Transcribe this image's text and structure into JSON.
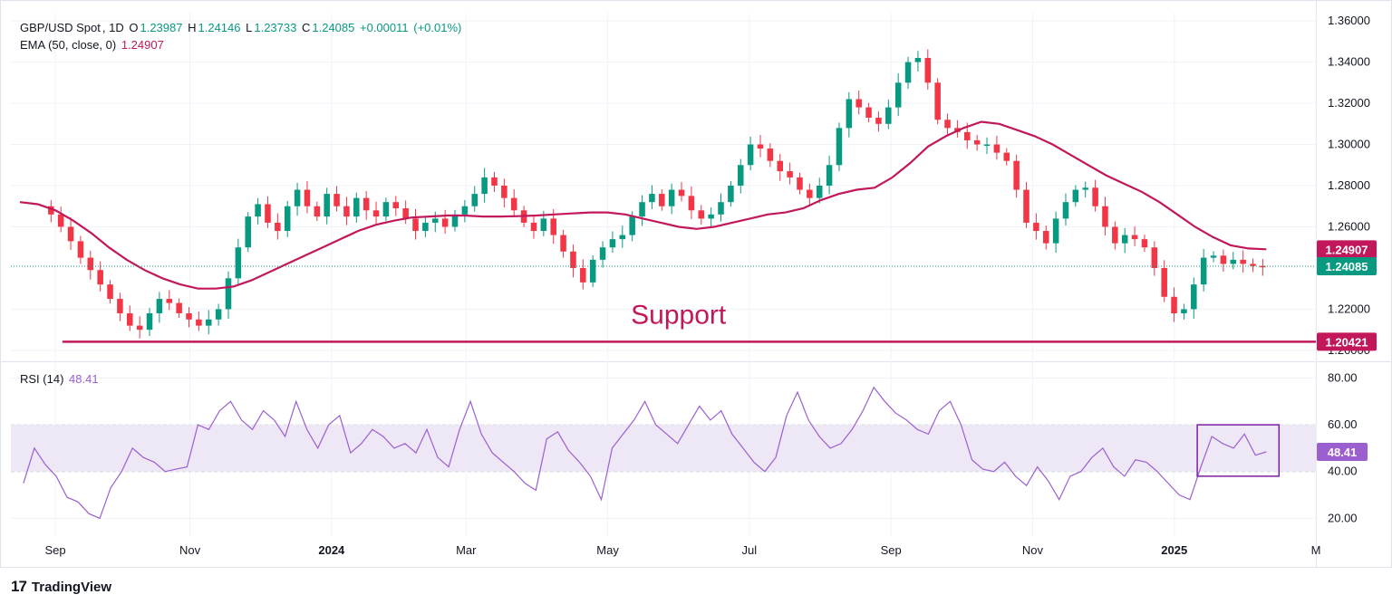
{
  "chart_data": [
    {
      "type": "candlestick",
      "symbol": "GBP/USD Spot",
      "interval": "1D",
      "ohlc": {
        "o_label": "O",
        "open": "1.23987",
        "h_label": "H",
        "high": "1.24146",
        "l_label": "L",
        "low": "1.23733",
        "c_label": "C",
        "close": "1.24085",
        "change": "+0.00011",
        "change_pct": "(+0.01%)"
      },
      "ema": {
        "label": "EMA (50, close, 0)",
        "value": "1.24907"
      },
      "y_ticks": [
        "1.36000",
        "1.34000",
        "1.32000",
        "1.30000",
        "1.28000",
        "1.26000",
        "1.22000",
        "1.20000"
      ],
      "y_tick_values": [
        1.36,
        1.34,
        1.32,
        1.3,
        1.28,
        1.26,
        1.22,
        1.2
      ],
      "ylim": [
        1.196,
        1.364
      ],
      "x_ticks": [
        "Sep",
        "Nov",
        "2024",
        "Mar",
        "May",
        "Jul",
        "Sep",
        "Nov",
        "2025",
        "M"
      ],
      "x_tick_months": [
        0.5,
        2.4,
        4.4,
        6.3,
        8.3,
        10.3,
        12.3,
        14.3,
        16.3,
        18.3
      ],
      "xlim_months": [
        0.0,
        18.3
      ],
      "close_series": [
        1.27,
        1.266,
        1.26,
        1.253,
        1.245,
        1.239,
        1.232,
        1.225,
        1.218,
        1.212,
        1.21,
        1.218,
        1.225,
        1.223,
        1.218,
        1.215,
        1.212,
        1.215,
        1.22,
        1.235,
        1.25,
        1.265,
        1.271,
        1.262,
        1.258,
        1.27,
        1.278,
        1.27,
        1.265,
        1.276,
        1.27,
        1.265,
        1.274,
        1.268,
        1.265,
        1.272,
        1.269,
        1.264,
        1.258,
        1.262,
        1.264,
        1.26,
        1.266,
        1.27,
        1.276,
        1.284,
        1.28,
        1.274,
        1.268,
        1.262,
        1.258,
        1.264,
        1.256,
        1.248,
        1.24,
        1.233,
        1.244,
        1.25,
        1.254,
        1.256,
        1.265,
        1.272,
        1.276,
        1.27,
        1.278,
        1.275,
        1.268,
        1.264,
        1.266,
        1.272,
        1.28,
        1.29,
        1.3,
        1.298,
        1.292,
        1.287,
        1.284,
        1.278,
        1.274,
        1.28,
        1.29,
        1.308,
        1.322,
        1.318,
        1.313,
        1.31,
        1.318,
        1.33,
        1.34,
        1.342,
        1.33,
        1.312,
        1.308,
        1.306,
        1.302,
        1.3,
        1.3,
        1.296,
        1.292,
        1.278,
        1.262,
        1.258,
        1.252,
        1.264,
        1.272,
        1.278,
        1.279,
        1.27,
        1.26,
        1.252,
        1.256,
        1.254,
        1.25,
        1.24,
        1.226,
        1.218,
        1.22,
        1.232,
        1.245,
        1.246,
        1.242,
        1.244,
        1.242,
        1.241,
        1.2408
      ],
      "ema_series": [
        1.272,
        1.271,
        1.268,
        1.263,
        1.257,
        1.25,
        1.244,
        1.239,
        1.235,
        1.232,
        1.23,
        1.23,
        1.231,
        1.234,
        1.238,
        1.242,
        1.246,
        1.25,
        1.254,
        1.258,
        1.261,
        1.263,
        1.2645,
        1.265,
        1.2655,
        1.2655,
        1.265,
        1.265,
        1.2652,
        1.2655,
        1.266,
        1.2665,
        1.267,
        1.267,
        1.266,
        1.264,
        1.262,
        1.26,
        1.259,
        1.26,
        1.262,
        1.264,
        1.266,
        1.267,
        1.269,
        1.273,
        1.276,
        1.278,
        1.279,
        1.284,
        1.291,
        1.299,
        1.304,
        1.308,
        1.311,
        1.31,
        1.307,
        1.304,
        1.3,
        1.295,
        1.29,
        1.285,
        1.281,
        1.277,
        1.272,
        1.266,
        1.26,
        1.255,
        1.251,
        1.2495,
        1.2491
      ],
      "support": {
        "label": "Support",
        "value": "1.20421",
        "level": 1.20421
      },
      "current_price": {
        "value": "1.24085",
        "level": 1.24085
      },
      "ema_badge": {
        "value": "1.24907",
        "level": 1.24907
      },
      "colors": {
        "up": "#089981",
        "down": "#f23645",
        "ema": "#c2185b",
        "support": "#c2185b",
        "grid": "#f0f3fa",
        "axis_text": "#131722"
      }
    },
    {
      "type": "line",
      "label": "RSI (14)",
      "value": "48.41",
      "y_ticks": [
        "80.00",
        "60.00",
        "40.00",
        "20.00"
      ],
      "y_tick_values": [
        80,
        60,
        40,
        20
      ],
      "ylim": [
        12,
        86
      ],
      "band": [
        40,
        60
      ],
      "rsi_series": [
        35,
        50,
        43,
        38,
        29,
        27,
        22,
        20,
        33,
        40,
        50,
        46,
        44,
        40,
        41,
        42,
        60,
        58,
        66,
        70,
        62,
        58,
        66,
        62,
        55,
        70,
        58,
        50,
        60,
        64,
        48,
        52,
        58,
        55,
        50,
        52,
        48,
        58,
        46,
        42,
        58,
        70,
        56,
        48,
        44,
        40,
        35,
        32,
        54,
        57,
        49,
        44,
        38,
        28,
        50,
        56,
        62,
        70,
        60,
        56,
        52,
        60,
        68,
        62,
        66,
        56,
        50,
        44,
        40,
        46,
        64,
        74,
        62,
        55,
        50,
        52,
        58,
        66,
        76,
        70,
        65,
        62,
        58,
        56,
        66,
        70,
        60,
        45,
        41,
        40,
        44,
        38,
        34,
        42,
        36,
        28,
        38,
        40,
        46,
        50,
        42,
        38,
        45,
        44,
        40,
        35,
        30,
        28,
        42,
        55,
        52,
        50,
        56,
        47,
        48.41
      ],
      "highlight_box": {
        "start_index": 108,
        "end_index": 114
      },
      "colors": {
        "line": "#9c5fcf",
        "band": "#ede7f6",
        "box": "#7b1fa2"
      }
    }
  ],
  "brand": {
    "name": "TradingView",
    "logo": "17"
  }
}
